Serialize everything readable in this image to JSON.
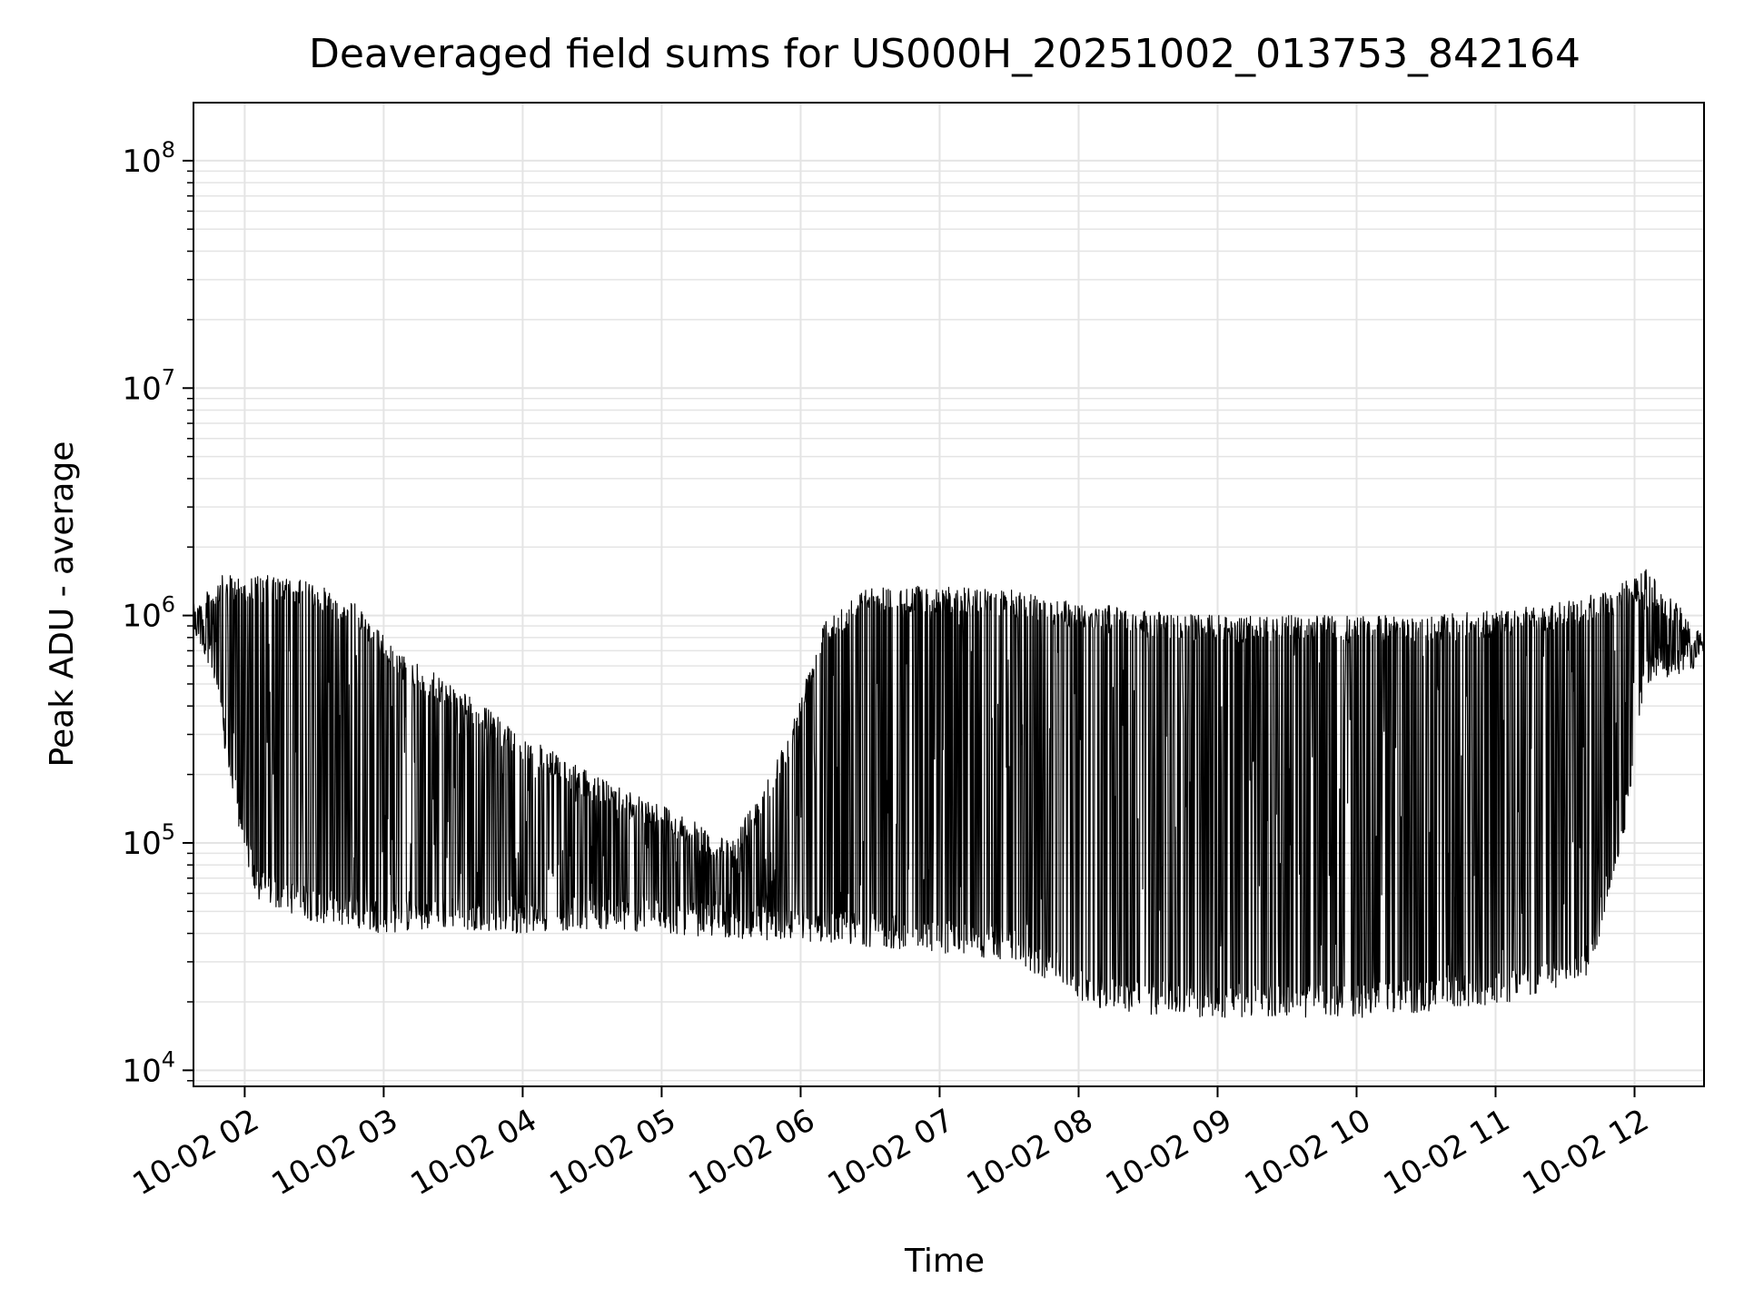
{
  "chart_data": {
    "type": "line",
    "title": "Deaveraged field sums for US000H_20251002_013753_842164",
    "xlabel": "Time",
    "ylabel": "Peak ADU - average",
    "y_scale": "log",
    "ylim": [
      8500,
      180000000
    ],
    "xlim": [
      "2025-10-02T01:37:53",
      "2025-10-02T12:30:00"
    ],
    "grid": true,
    "line_color": "#000000",
    "x_ticks": [
      {
        "label": "10-02 02",
        "time": "2025-10-02T02:00:00"
      },
      {
        "label": "10-02 03",
        "time": "2025-10-02T03:00:00"
      },
      {
        "label": "10-02 04",
        "time": "2025-10-02T04:00:00"
      },
      {
        "label": "10-02 05",
        "time": "2025-10-02T05:00:00"
      },
      {
        "label": "10-02 06",
        "time": "2025-10-02T06:00:00"
      },
      {
        "label": "10-02 07",
        "time": "2025-10-02T07:00:00"
      },
      {
        "label": "10-02 08",
        "time": "2025-10-02T08:00:00"
      },
      {
        "label": "10-02 09",
        "time": "2025-10-02T09:00:00"
      },
      {
        "label": "10-02 10",
        "time": "2025-10-02T10:00:00"
      },
      {
        "label": "10-02 11",
        "time": "2025-10-02T11:00:00"
      },
      {
        "label": "10-02 12",
        "time": "2025-10-02T12:00:00"
      }
    ],
    "y_ticks": [
      {
        "value": 10000,
        "base": "10",
        "exp": "4"
      },
      {
        "value": 100000,
        "base": "10",
        "exp": "5"
      },
      {
        "value": 1000000,
        "base": "10",
        "exp": "6"
      },
      {
        "value": 10000000,
        "base": "10",
        "exp": "7"
      },
      {
        "value": 100000000,
        "base": "10",
        "exp": "8"
      }
    ],
    "series": [
      {
        "upper_envelope": [
          [
            "2025-10-02T01:38:00",
            1100000
          ],
          [
            "2025-10-02T01:50:00",
            1500000
          ],
          [
            "2025-10-02T02:10:00",
            1500000
          ],
          [
            "2025-10-02T02:30:00",
            1400000
          ],
          [
            "2025-10-02T02:50:00",
            1100000
          ],
          [
            "2025-10-02T03:05:00",
            700000
          ],
          [
            "2025-10-02T03:30:00",
            500000
          ],
          [
            "2025-10-02T04:00:00",
            300000
          ],
          [
            "2025-10-02T04:30:00",
            200000
          ],
          [
            "2025-10-02T05:00:00",
            150000
          ],
          [
            "2025-10-02T05:30:00",
            100000
          ],
          [
            "2025-10-02T05:55:00",
            300000
          ],
          [
            "2025-10-02T06:10:00",
            1000000
          ],
          [
            "2025-10-02T06:30:00",
            1350000
          ],
          [
            "2025-10-02T07:00:00",
            1350000
          ],
          [
            "2025-10-02T07:30:00",
            1300000
          ],
          [
            "2025-10-02T08:00:00",
            1150000
          ],
          [
            "2025-10-02T08:30:00",
            1050000
          ],
          [
            "2025-10-02T09:00:00",
            1000000
          ],
          [
            "2025-10-02T09:30:00",
            1000000
          ],
          [
            "2025-10-02T10:00:00",
            1000000
          ],
          [
            "2025-10-02T10:30:00",
            1000000
          ],
          [
            "2025-10-02T11:00:00",
            1050000
          ],
          [
            "2025-10-02T11:30:00",
            1150000
          ],
          [
            "2025-10-02T11:50:00",
            1300000
          ],
          [
            "2025-10-02T12:05:00",
            1600000
          ],
          [
            "2025-10-02T12:20:00",
            1100000
          ],
          [
            "2025-10-02T12:30:00",
            800000
          ]
        ],
        "lower_envelope": [
          [
            "2025-10-02T01:38:00",
            800000
          ],
          [
            "2025-10-02T01:45:00",
            600000
          ],
          [
            "2025-10-02T01:55:00",
            150000
          ],
          [
            "2025-10-02T02:05:00",
            55000
          ],
          [
            "2025-10-02T02:30:00",
            45000
          ],
          [
            "2025-10-02T03:00:00",
            40000
          ],
          [
            "2025-10-02T03:30:00",
            42000
          ],
          [
            "2025-10-02T04:00:00",
            40000
          ],
          [
            "2025-10-02T04:30:00",
            42000
          ],
          [
            "2025-10-02T05:00:00",
            40000
          ],
          [
            "2025-10-02T05:30:00",
            38000
          ],
          [
            "2025-10-02T06:00:00",
            37000
          ],
          [
            "2025-10-02T06:30:00",
            35000
          ],
          [
            "2025-10-02T07:00:00",
            33000
          ],
          [
            "2025-10-02T07:30:00",
            30000
          ],
          [
            "2025-10-02T07:50:00",
            24000
          ],
          [
            "2025-10-02T08:10:00",
            18000
          ],
          [
            "2025-10-02T09:00:00",
            17000
          ],
          [
            "2025-10-02T10:00:00",
            17000
          ],
          [
            "2025-10-02T11:00:00",
            19000
          ],
          [
            "2025-10-02T11:40:00",
            25000
          ],
          [
            "2025-10-02T11:55:00",
            100000
          ],
          [
            "2025-10-02T12:05:00",
            500000
          ],
          [
            "2025-10-02T12:30:00",
            600000
          ]
        ]
      }
    ]
  }
}
